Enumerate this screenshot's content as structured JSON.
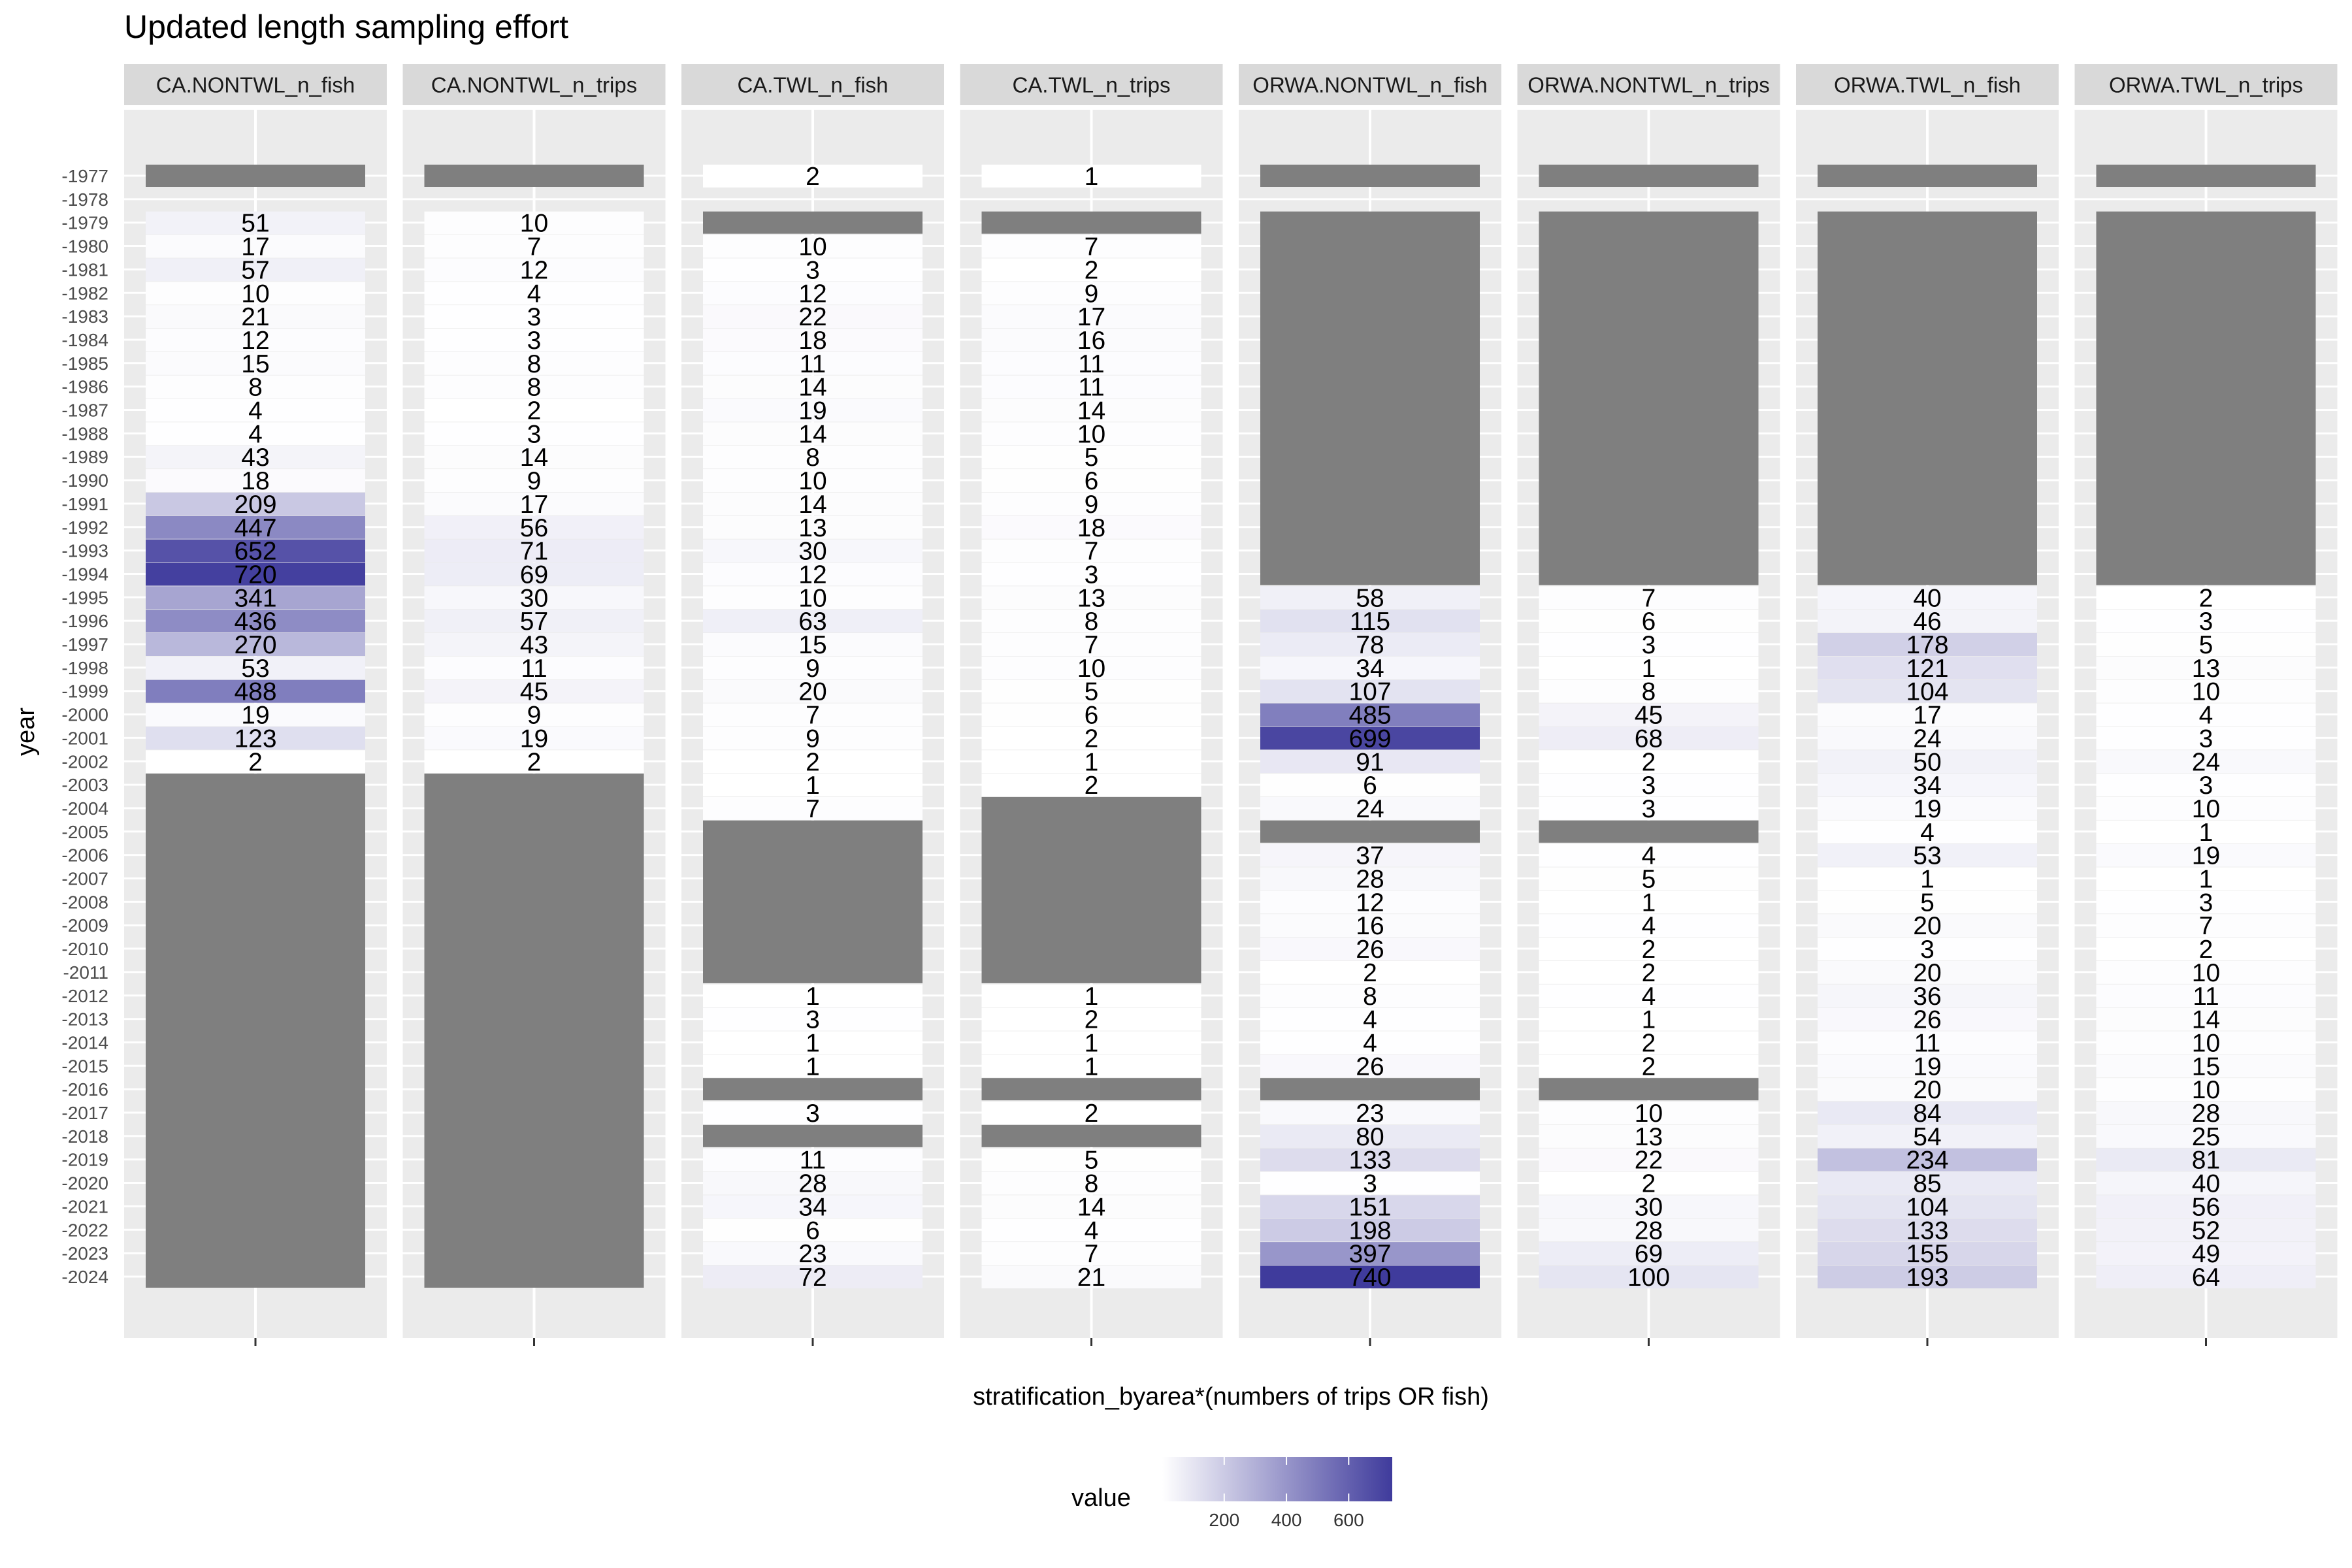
{
  "chart_data": {
    "type": "heatmap",
    "title": "Updated length sampling effort",
    "xlabel": "stratification_byarea*(numbers of trips OR fish)",
    "ylabel": "year",
    "facets": [
      "CA.NONTWL_n_fish",
      "CA.NONTWL_n_trips",
      "CA.TWL_n_fish",
      "CA.TWL_n_trips",
      "ORWA.NONTWL_n_fish",
      "ORWA.NONTWL_n_trips",
      "ORWA.TWL_n_fish",
      "ORWA.TWL_n_trips"
    ],
    "years": [
      1977,
      1978,
      1979,
      1980,
      1981,
      1982,
      1983,
      1984,
      1985,
      1986,
      1987,
      1988,
      1989,
      1990,
      1991,
      1992,
      1993,
      1994,
      1995,
      1996,
      1997,
      1998,
      1999,
      2000,
      2001,
      2002,
      2003,
      2004,
      2005,
      2006,
      2007,
      2008,
      2009,
      2010,
      2011,
      2012,
      2013,
      2014,
      2015,
      2016,
      2017,
      2018,
      2019,
      2020,
      2021,
      2022,
      2023,
      2024
    ],
    "year_tick_labels": [
      "-1977",
      "-1978",
      "-1979",
      "-1980",
      "-1981",
      "-1982",
      "-1983",
      "-1984",
      "-1985",
      "-1986",
      "-1987",
      "-1988",
      "-1989",
      "-1990",
      "-1991",
      "-1992",
      "-1993",
      "-1994",
      "-1995",
      "-1996",
      "-1997",
      "-1998",
      "-1999",
      "-2000",
      "-2001",
      "-2002",
      "-2003",
      "-2004",
      "-2005",
      "-2006",
      "-2007",
      "-2008",
      "-2009",
      "-2010",
      "-2011",
      "-2012",
      "-2013",
      "-2014",
      "-2015",
      "-2016",
      "-2017",
      "-2018",
      "-2019",
      "-2020",
      "-2021",
      "-2022",
      "-2023",
      "-2024"
    ],
    "series": [
      {
        "name": "CA.NONTWL_n_fish",
        "values": [
          "NA",
          null,
          51,
          17,
          57,
          10,
          21,
          12,
          15,
          8,
          4,
          4,
          43,
          18,
          209,
          447,
          652,
          720,
          341,
          436,
          270,
          53,
          488,
          19,
          123,
          2,
          "NA",
          "NA",
          "NA",
          "NA",
          "NA",
          "NA",
          "NA",
          "NA",
          "NA",
          "NA",
          "NA",
          "NA",
          "NA",
          "NA",
          "NA",
          "NA",
          "NA",
          "NA",
          "NA",
          "NA",
          "NA",
          "NA"
        ]
      },
      {
        "name": "CA.NONTWL_n_trips",
        "values": [
          "NA",
          null,
          10,
          7,
          12,
          4,
          3,
          3,
          8,
          8,
          2,
          3,
          14,
          9,
          17,
          56,
          71,
          69,
          30,
          57,
          43,
          11,
          45,
          9,
          19,
          2,
          "NA",
          "NA",
          "NA",
          "NA",
          "NA",
          "NA",
          "NA",
          "NA",
          "NA",
          "NA",
          "NA",
          "NA",
          "NA",
          "NA",
          "NA",
          "NA",
          "NA",
          "NA",
          "NA",
          "NA",
          "NA",
          "NA"
        ]
      },
      {
        "name": "CA.TWL_n_fish",
        "values": [
          2,
          null,
          "NA",
          10,
          3,
          12,
          22,
          18,
          11,
          14,
          19,
          14,
          8,
          10,
          14,
          13,
          30,
          12,
          10,
          63,
          15,
          9,
          20,
          7,
          9,
          2,
          1,
          7,
          "NA",
          "NA",
          "NA",
          "NA",
          "NA",
          "NA",
          "NA",
          1,
          3,
          1,
          1,
          "NA",
          3,
          "NA",
          11,
          28,
          34,
          6,
          23,
          72
        ]
      },
      {
        "name": "CA.TWL_n_trips",
        "values": [
          1,
          null,
          "NA",
          7,
          2,
          9,
          17,
          16,
          11,
          11,
          14,
          10,
          5,
          6,
          9,
          18,
          7,
          3,
          13,
          8,
          7,
          10,
          5,
          6,
          2,
          1,
          2,
          "NA",
          "NA",
          "NA",
          "NA",
          "NA",
          "NA",
          "NA",
          "NA",
          1,
          2,
          1,
          1,
          "NA",
          2,
          "NA",
          5,
          8,
          14,
          4,
          7,
          21
        ]
      },
      {
        "name": "ORWA.NONTWL_n_fish",
        "values": [
          "NA",
          null,
          "NA",
          "NA",
          "NA",
          "NA",
          "NA",
          "NA",
          "NA",
          "NA",
          "NA",
          "NA",
          "NA",
          "NA",
          "NA",
          "NA",
          "NA",
          "NA",
          58,
          115,
          78,
          34,
          107,
          485,
          699,
          91,
          6,
          24,
          "NA",
          37,
          28,
          12,
          16,
          26,
          2,
          8,
          4,
          4,
          26,
          "NA",
          23,
          80,
          133,
          3,
          151,
          198,
          397,
          740
        ]
      },
      {
        "name": "ORWA.NONTWL_n_trips",
        "values": [
          "NA",
          null,
          "NA",
          "NA",
          "NA",
          "NA",
          "NA",
          "NA",
          "NA",
          "NA",
          "NA",
          "NA",
          "NA",
          "NA",
          "NA",
          "NA",
          "NA",
          "NA",
          7,
          6,
          3,
          1,
          8,
          45,
          68,
          2,
          3,
          3,
          "NA",
          4,
          5,
          1,
          4,
          2,
          2,
          4,
          1,
          2,
          2,
          "NA",
          10,
          13,
          22,
          2,
          30,
          28,
          69,
          100
        ]
      },
      {
        "name": "ORWA.TWL_n_fish",
        "values": [
          "NA",
          null,
          "NA",
          "NA",
          "NA",
          "NA",
          "NA",
          "NA",
          "NA",
          "NA",
          "NA",
          "NA",
          "NA",
          "NA",
          "NA",
          "NA",
          "NA",
          "NA",
          40,
          46,
          178,
          121,
          104,
          17,
          24,
          50,
          34,
          19,
          4,
          53,
          1,
          5,
          20,
          3,
          20,
          36,
          26,
          11,
          19,
          20,
          84,
          54,
          234,
          85,
          104,
          133,
          155,
          193
        ]
      },
      {
        "name": "ORWA.TWL_n_trips",
        "values": [
          "NA",
          null,
          "NA",
          "NA",
          "NA",
          "NA",
          "NA",
          "NA",
          "NA",
          "NA",
          "NA",
          "NA",
          "NA",
          "NA",
          "NA",
          "NA",
          "NA",
          "NA",
          2,
          3,
          5,
          13,
          10,
          4,
          3,
          24,
          3,
          10,
          1,
          19,
          1,
          3,
          7,
          2,
          10,
          11,
          14,
          10,
          15,
          10,
          28,
          25,
          81,
          40,
          56,
          52,
          49,
          64
        ]
      }
    ],
    "color_scale": {
      "title": "value",
      "low_color": "#ffffff",
      "high_color": "#3f3b9c",
      "na_color": "#7f7f7f",
      "range": [
        1,
        740
      ],
      "ticks": [
        200,
        400,
        600
      ]
    }
  }
}
